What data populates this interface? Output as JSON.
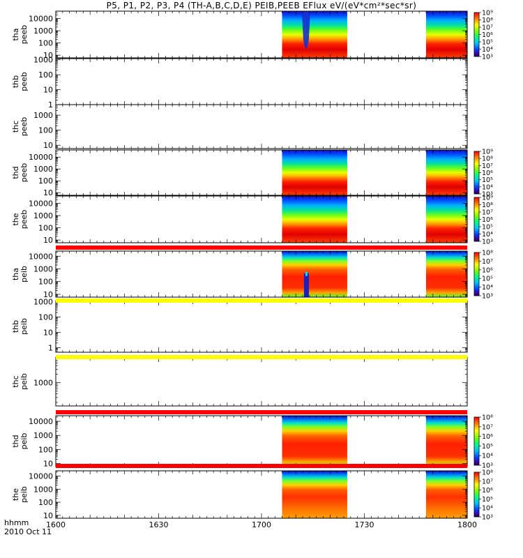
{
  "title": "P5, P1, P2, P3, P4 (TH-A,B,C,D,E) PEIB,PEEB EFlux eV/(eV*cm²*sec*sr)",
  "time_axis": {
    "label": "hhmm",
    "date": "2010 Oct 11",
    "ticks": [
      "1600",
      "1630",
      "1700",
      "1730",
      "1800"
    ],
    "range_minutes": [
      0,
      120
    ]
  },
  "colors": {
    "band_red": "#ff0000",
    "band_yellow": "#ffff00"
  },
  "chart_data": [
    {
      "type": "heatmap",
      "probe": "tha",
      "product": "peeb",
      "scale": "log",
      "ylim": [
        6,
        40000
      ],
      "yticks": [
        "10",
        "100",
        "1000",
        "10000"
      ],
      "minor_ticks": true,
      "colorbar": [
        "10⁹",
        "10⁸",
        "10⁷",
        "10⁶",
        "10⁵",
        "10⁴",
        "10³"
      ],
      "data_intervals": [
        [
          "1706",
          "1725"
        ],
        [
          "1748",
          "1800"
        ]
      ],
      "features": [
        {
          "time": "1713",
          "note": "low-energy dropout"
        }
      ]
    },
    {
      "type": "heatmap",
      "probe": "thb",
      "product": "peeb",
      "scale": "log",
      "ylim": [
        1,
        1200
      ],
      "yticks": [
        "1",
        "10",
        "100",
        "1000"
      ],
      "minor_ticks": true,
      "colorbar": [],
      "data_intervals": []
    },
    {
      "type": "heatmap",
      "probe": "thc",
      "product": "peeb",
      "scale": "log",
      "ylim": [
        6,
        5000
      ],
      "yticks": [
        "10",
        "100",
        "1000"
      ],
      "minor_ticks": true,
      "colorbar": [],
      "data_intervals": []
    },
    {
      "type": "heatmap",
      "probe": "thd",
      "product": "peeb",
      "scale": "log",
      "ylim": [
        6,
        40000
      ],
      "yticks": [
        "10",
        "100",
        "1000",
        "10000"
      ],
      "minor_ticks": true,
      "colorbar": [
        "10⁹",
        "10⁸",
        "10⁷",
        "10⁶",
        "10⁵",
        "10⁴",
        "10³"
      ],
      "data_intervals": [
        [
          "1706",
          "1725"
        ],
        [
          "1748",
          "1800"
        ]
      ]
    },
    {
      "type": "heatmap",
      "probe": "the",
      "product": "peeb",
      "scale": "log",
      "ylim": [
        6,
        40000
      ],
      "yticks": [
        "10",
        "100",
        "1000",
        "10000"
      ],
      "minor_ticks": true,
      "colorbar": [
        "10⁹",
        "10⁸",
        "10⁷",
        "10⁶",
        "10⁵",
        "10⁴",
        "10³"
      ],
      "data_intervals": [
        [
          "1706",
          "1725"
        ],
        [
          "1748",
          "1800"
        ]
      ]
    },
    {
      "type": "heatmap",
      "probe": "tha",
      "product": "peib",
      "scale": "log",
      "ylim": [
        6,
        25000
      ],
      "yticks": [
        "10",
        "100",
        "1000",
        "10000"
      ],
      "minor_ticks": true,
      "colorbar": [
        "10⁸",
        "10⁷",
        "10⁶",
        "10⁵",
        "10⁴",
        "10³"
      ],
      "data_intervals": [
        [
          "1706",
          "1725"
        ],
        [
          "1748",
          "1800"
        ]
      ],
      "band_above": "red",
      "features": [
        {
          "time": "1713",
          "note": "narrow dropout"
        }
      ]
    },
    {
      "type": "heatmap",
      "probe": "thb",
      "product": "peib",
      "scale": "log",
      "ylim": [
        0.5,
        1200
      ],
      "yticks": [
        "1",
        "10",
        "100",
        "1000"
      ],
      "minor_ticks": true,
      "colorbar": [],
      "data_intervals": [],
      "band_above": "yellow"
    },
    {
      "type": "heatmap",
      "probe": "thc",
      "product": "peib",
      "scale": "log",
      "ylim": [
        150,
        8000
      ],
      "yticks": [
        "1000"
      ],
      "minor_ticks": true,
      "colorbar": [],
      "data_intervals": [],
      "band_above": "yellow"
    },
    {
      "type": "heatmap",
      "probe": "thd",
      "product": "peib",
      "scale": "log",
      "ylim": [
        6,
        25000
      ],
      "yticks": [
        "10",
        "100",
        "1000",
        "10000"
      ],
      "minor_ticks": true,
      "colorbar": [
        "10⁸",
        "10⁷",
        "10⁶",
        "10⁵",
        "10⁴",
        "10³"
      ],
      "data_intervals": [
        [
          "1706",
          "1725"
        ],
        [
          "1748",
          "1800"
        ]
      ],
      "band_above": "red"
    },
    {
      "type": "heatmap",
      "probe": "the",
      "product": "peib",
      "scale": "log",
      "ylim": [
        6,
        25000
      ],
      "yticks": [
        "10",
        "100",
        "1000",
        "10000"
      ],
      "minor_ticks": true,
      "colorbar": [
        "10⁸",
        "10⁷",
        "10⁶",
        "10⁵",
        "10⁴",
        "10³"
      ],
      "data_intervals": [
        [
          "1706",
          "1725"
        ],
        [
          "1748",
          "1800"
        ]
      ],
      "band_above": "red"
    }
  ]
}
